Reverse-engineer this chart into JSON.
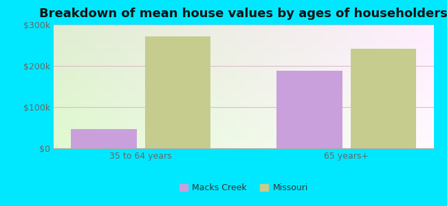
{
  "title": "Breakdown of mean house values by ages of householders",
  "categories": [
    "35 to 64 years",
    "65 years+"
  ],
  "macks_creek": [
    47000,
    188000
  ],
  "missouri": [
    272000,
    242000
  ],
  "macks_creek_color": "#c9a0dc",
  "missouri_color": "#c5cc8e",
  "background_color": "#00e8ff",
  "ylim": [
    0,
    300000
  ],
  "yticks": [
    0,
    100000,
    200000,
    300000
  ],
  "ytick_labels": [
    "$0",
    "$100k",
    "$200k",
    "$300k"
  ],
  "title_fontsize": 13,
  "legend_labels": [
    "Macks Creek",
    "Missouri"
  ],
  "bar_width": 0.32,
  "grid_color": "#ddbbcc",
  "tick_label_color": "#666666",
  "title_color": "#111111"
}
